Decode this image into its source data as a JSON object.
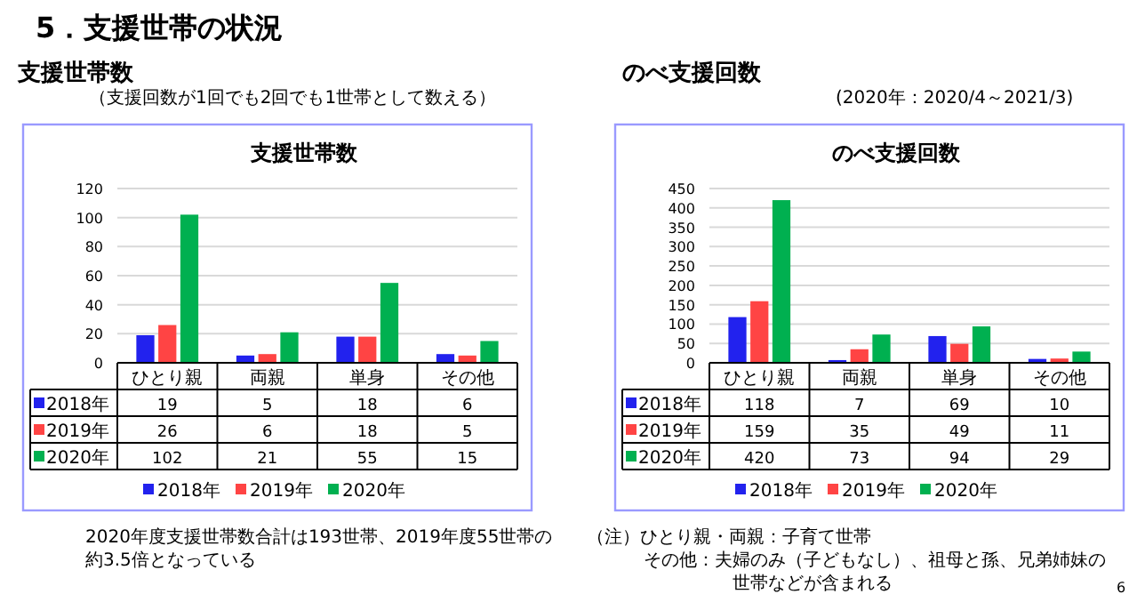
{
  "chart_data": [
    {
      "type": "bar",
      "title": "支援世帯数",
      "subtitle": "（支援回数が1回でも2回でも1世帯として数える）",
      "categories": [
        "ひとり親",
        "両親",
        "単身",
        "その他"
      ],
      "series": [
        {
          "name": "2018年",
          "color": "#2222ee",
          "values": [
            19,
            5,
            18,
            6
          ]
        },
        {
          "name": "2019年",
          "color": "#ff4444",
          "values": [
            26,
            6,
            18,
            5
          ]
        },
        {
          "name": "2020年",
          "color": "#00b050",
          "values": [
            102,
            21,
            55,
            15
          ]
        }
      ],
      "ylim": [
        0,
        120
      ],
      "yticks": [
        0,
        20,
        40,
        60,
        80,
        100,
        120
      ],
      "grid": "y",
      "legend": "bottom",
      "data_labels": true,
      "annotations": [
        "5．支援世帯の状況",
        "支援世帯数",
        "2020年度支援世帯数合計は193世帯、2019年度55世帯の",
        "約3.5倍となっている"
      ]
    },
    {
      "type": "bar",
      "title": "のべ支援回数",
      "subtitle": "(2020年：2020/4～2021/3)",
      "categories": [
        "ひとり親",
        "両親",
        "単身",
        "その他"
      ],
      "series": [
        {
          "name": "2018年",
          "color": "#2222ee",
          "values": [
            118,
            7,
            69,
            10
          ]
        },
        {
          "name": "2019年",
          "color": "#ff4444",
          "values": [
            159,
            35,
            49,
            11
          ]
        },
        {
          "name": "2020年",
          "color": "#00b050",
          "values": [
            420,
            73,
            94,
            29
          ]
        }
      ],
      "ylim": [
        0,
        450
      ],
      "yticks": [
        0,
        50,
        100,
        150,
        200,
        250,
        300,
        350,
        400,
        450
      ],
      "grid": "y",
      "legend": "bottom",
      "data_labels": true,
      "annotations": [
        "のべ支援回数",
        "（注）ひとり親・両親：子育て世帯",
        "その他：夫婦のみ（子どもなし）、祖母と孫、兄弟姉妹の",
        "世帯などが含まれる",
        "6"
      ]
    }
  ]
}
